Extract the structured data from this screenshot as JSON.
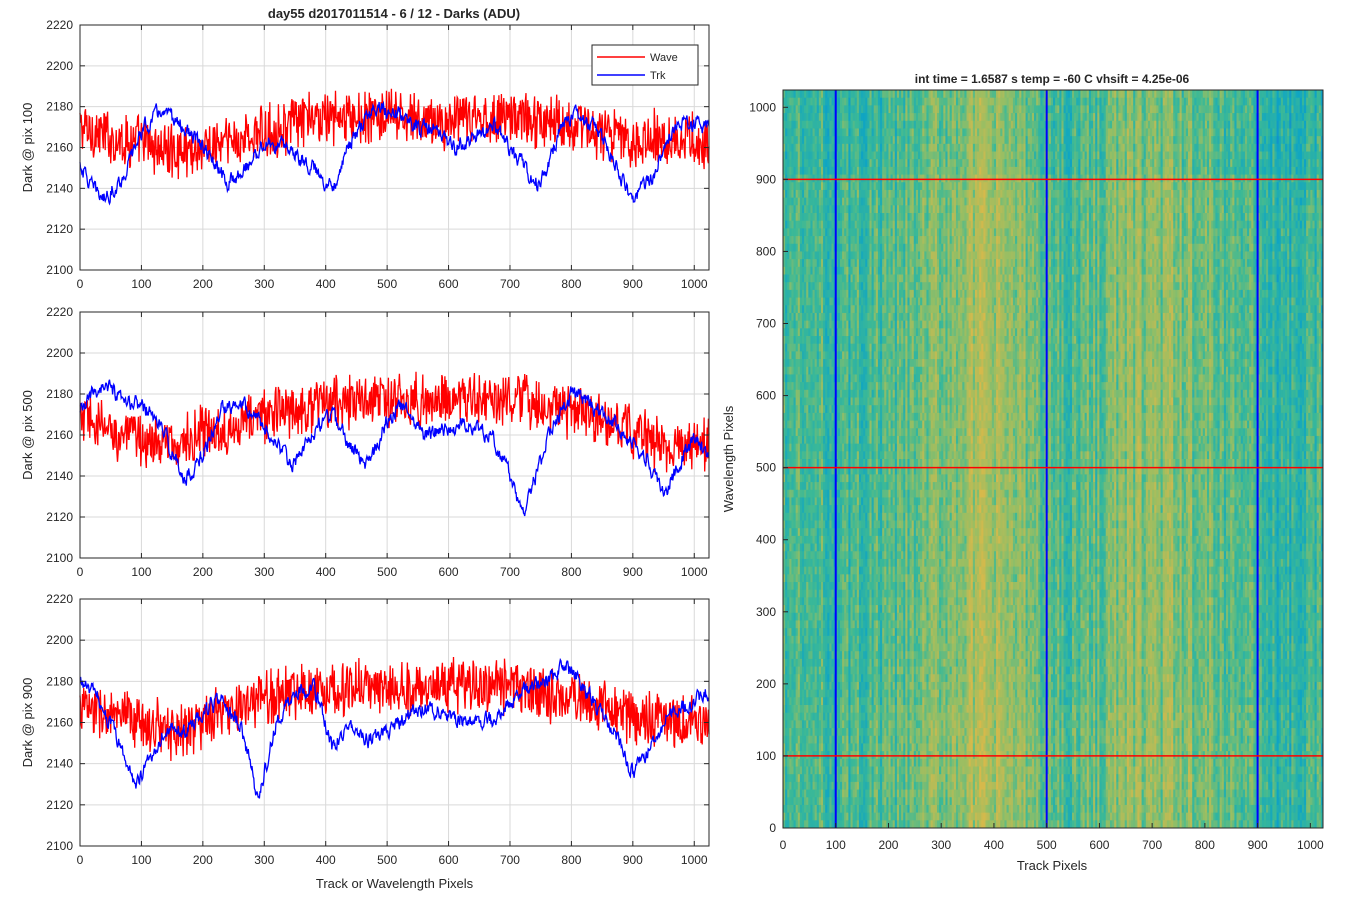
{
  "figure": {
    "suptitle": "day55 d2017011514 - 6 / 12 - Darks (ADU)",
    "shared_xlabel": "Track or Wavelength Pixels"
  },
  "chart_data": [
    {
      "type": "line",
      "ylabel": "Dark @ pix 100",
      "xlim": [
        0,
        1024
      ],
      "ylim": [
        2100,
        2220
      ],
      "xticks": [
        0,
        100,
        200,
        300,
        400,
        500,
        600,
        700,
        800,
        900,
        1000
      ],
      "yticks": [
        2100,
        2120,
        2140,
        2160,
        2180,
        2200,
        2220
      ],
      "grid": true,
      "legend": {
        "placement": "top-right",
        "entries": [
          "Wave",
          "Trk"
        ]
      },
      "series": [
        {
          "name": "Wave",
          "color": "#ff0000",
          "x": [
            0,
            50,
            100,
            150,
            200,
            250,
            300,
            350,
            400,
            450,
            500,
            550,
            600,
            650,
            700,
            750,
            800,
            850,
            900,
            950,
            1000,
            1024
          ],
          "mean": [
            2170,
            2165,
            2162,
            2158,
            2160,
            2163,
            2167,
            2172,
            2175,
            2174,
            2175,
            2173,
            2172,
            2174,
            2176,
            2173,
            2172,
            2167,
            2163,
            2166,
            2163,
            2160
          ],
          "spread": 11,
          "min": 2108,
          "max": 2205
        },
        {
          "name": "Trk",
          "color": "#0000ff",
          "x": [
            0,
            20,
            40,
            70,
            100,
            130,
            160,
            200,
            240,
            270,
            300,
            340,
            380,
            410,
            440,
            480,
            520,
            550,
            580,
            610,
            650,
            680,
            700,
            720,
            740,
            760,
            780,
            800,
            830,
            860,
            880,
            900,
            930,
            960,
            990,
            1024
          ],
          "mean": [
            2152,
            2140,
            2135,
            2145,
            2168,
            2178,
            2172,
            2160,
            2142,
            2150,
            2162,
            2160,
            2150,
            2140,
            2162,
            2180,
            2176,
            2170,
            2168,
            2160,
            2166,
            2170,
            2158,
            2152,
            2142,
            2148,
            2168,
            2176,
            2172,
            2160,
            2145,
            2135,
            2145,
            2168,
            2172,
            2170
          ],
          "spread": 4,
          "min": 2125,
          "max": 2190
        }
      ]
    },
    {
      "type": "line",
      "ylabel": "Dark @ pix 500",
      "xlim": [
        0,
        1024
      ],
      "ylim": [
        2100,
        2220
      ],
      "xticks": [
        0,
        100,
        200,
        300,
        400,
        500,
        600,
        700,
        800,
        900,
        1000
      ],
      "yticks": [
        2100,
        2120,
        2140,
        2160,
        2180,
        2200,
        2220
      ],
      "grid": true,
      "series": [
        {
          "name": "Wave",
          "color": "#ff0000",
          "x": [
            0,
            50,
            100,
            150,
            200,
            250,
            300,
            350,
            400,
            450,
            500,
            550,
            600,
            650,
            700,
            750,
            800,
            850,
            900,
            950,
            1000,
            1024
          ],
          "mean": [
            2168,
            2162,
            2158,
            2155,
            2160,
            2165,
            2170,
            2173,
            2176,
            2177,
            2177,
            2176,
            2178,
            2177,
            2176,
            2175,
            2172,
            2166,
            2162,
            2155,
            2152,
            2158
          ],
          "spread": 11,
          "min": 2117,
          "max": 2205
        },
        {
          "name": "Trk",
          "color": "#0000ff",
          "x": [
            0,
            20,
            40,
            70,
            100,
            130,
            170,
            200,
            230,
            260,
            290,
            320,
            350,
            380,
            410,
            440,
            470,
            500,
            530,
            560,
            600,
            640,
            670,
            700,
            720,
            740,
            770,
            800,
            830,
            860,
            890,
            920,
            950,
            980,
            1000,
            1024
          ],
          "mean": [
            2170,
            2180,
            2185,
            2175,
            2175,
            2165,
            2138,
            2150,
            2172,
            2178,
            2168,
            2155,
            2145,
            2162,
            2170,
            2155,
            2145,
            2168,
            2175,
            2160,
            2163,
            2165,
            2160,
            2140,
            2122,
            2138,
            2165,
            2180,
            2175,
            2168,
            2160,
            2150,
            2130,
            2150,
            2158,
            2148
          ],
          "spread": 4,
          "min": 2118,
          "max": 2193
        }
      ]
    },
    {
      "type": "line",
      "ylabel": "Dark @ pix 900",
      "xlabel": "Track or Wavelength Pixels",
      "xlim": [
        0,
        1024
      ],
      "ylim": [
        2100,
        2220
      ],
      "xticks": [
        0,
        100,
        200,
        300,
        400,
        500,
        600,
        700,
        800,
        900,
        1000
      ],
      "yticks": [
        2100,
        2120,
        2140,
        2160,
        2180,
        2200,
        2220
      ],
      "grid": true,
      "series": [
        {
          "name": "Wave",
          "color": "#ff0000",
          "x": [
            0,
            50,
            100,
            150,
            200,
            250,
            300,
            350,
            400,
            450,
            500,
            550,
            600,
            650,
            700,
            750,
            800,
            850,
            900,
            950,
            1000,
            1024
          ],
          "mean": [
            2168,
            2163,
            2160,
            2156,
            2160,
            2166,
            2172,
            2176,
            2176,
            2177,
            2177,
            2176,
            2178,
            2178,
            2177,
            2175,
            2172,
            2168,
            2163,
            2162,
            2158,
            2160
          ],
          "spread": 11,
          "min": 2113,
          "max": 2211
        },
        {
          "name": "Trk",
          "color": "#0000ff",
          "x": [
            0,
            30,
            60,
            90,
            110,
            140,
            170,
            200,
            230,
            260,
            290,
            320,
            350,
            380,
            410,
            440,
            470,
            500,
            530,
            560,
            600,
            640,
            680,
            720,
            760,
            790,
            810,
            840,
            870,
            900,
            930,
            960,
            1000,
            1024
          ],
          "mean": [
            2180,
            2172,
            2152,
            2130,
            2140,
            2158,
            2155,
            2165,
            2170,
            2160,
            2123,
            2160,
            2175,
            2178,
            2148,
            2160,
            2152,
            2155,
            2162,
            2168,
            2163,
            2160,
            2162,
            2175,
            2180,
            2188,
            2182,
            2168,
            2155,
            2135,
            2148,
            2165,
            2170,
            2175
          ],
          "spread": 4,
          "min": 2118,
          "max": 2202
        }
      ]
    },
    {
      "type": "heatmap",
      "title": "int time = 1.6587 s    temp = -60 C    vhsift = 4.25e-06",
      "xlabel": "Track Pixels",
      "ylabel": "Wavelength Pixels",
      "xlim": [
        0,
        1024
      ],
      "ylim": [
        0,
        1024
      ],
      "xticks": [
        0,
        100,
        200,
        300,
        400,
        500,
        600,
        700,
        800,
        900,
        1000
      ],
      "yticks": [
        0,
        100,
        200,
        300,
        400,
        500,
        600,
        700,
        800,
        900,
        1000
      ],
      "grid": false,
      "colormap": "parula",
      "column_profile": {
        "x": [
          0,
          100,
          200,
          250,
          300,
          350,
          380,
          420,
          470,
          500,
          550,
          600,
          650,
          700,
          750,
          800,
          850,
          900,
          950,
          1000,
          1024
        ],
        "value": [
          0.55,
          0.52,
          0.55,
          0.62,
          0.7,
          0.78,
          0.8,
          0.76,
          0.66,
          0.6,
          0.58,
          0.65,
          0.72,
          0.74,
          0.7,
          0.66,
          0.6,
          0.55,
          0.42,
          0.48,
          0.52
        ]
      },
      "markers": {
        "vertical_lines": {
          "x": [
            100,
            500,
            900
          ],
          "color": "#0000ff"
        },
        "horizontal_lines": {
          "y": [
            100,
            500,
            900
          ],
          "color": "#ff0000"
        }
      }
    }
  ]
}
